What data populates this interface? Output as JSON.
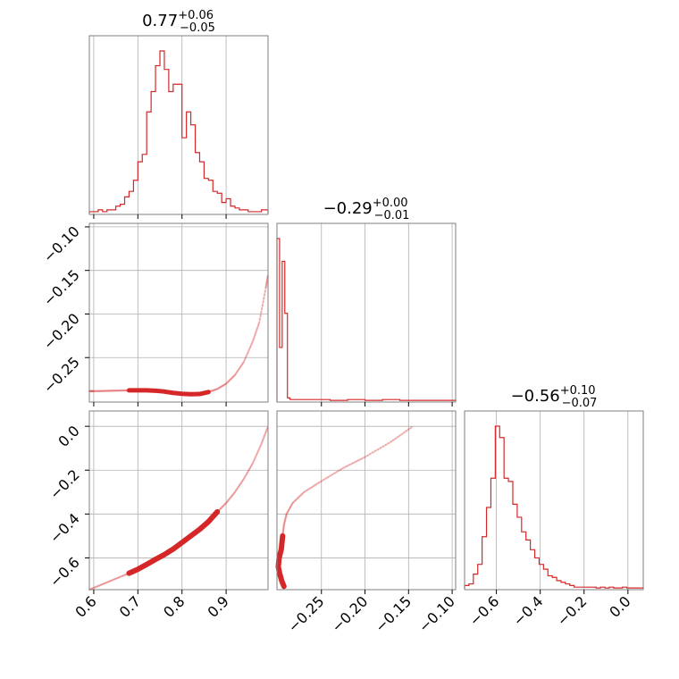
{
  "colors": {
    "accent": "#d62728",
    "grid": "#b0b0b0",
    "frame": "#7f7f7f"
  },
  "chart_data": {
    "type": "corner",
    "grid": true,
    "params": [
      {
        "title_main": "0.77",
        "title_plus": "+0.06",
        "title_minus": "−0.05",
        "range": [
          0.59,
          0.995
        ],
        "ticks": [
          0.6,
          0.7,
          0.8,
          0.9
        ],
        "tick_labels": [
          "0.6",
          "0.7",
          "0.8",
          "0.9"
        ]
      },
      {
        "title_main": "−0.29",
        "title_plus": "+0.00",
        "title_minus": "−0.01",
        "range": [
          -0.301,
          -0.096
        ],
        "ticks": [
          -0.25,
          -0.2,
          -0.15,
          -0.1
        ],
        "tick_labels": [
          "−0.25",
          "−0.20",
          "−0.15",
          "−0.10"
        ],
        "row_tick_labels": [
          "−0.10",
          "−0.15",
          "−0.20",
          "−0.25"
        ]
      },
      {
        "title_main": "−0.56",
        "title_plus": "+0.10",
        "title_minus": "−0.07",
        "range": [
          -0.745,
          0.07
        ],
        "ticks": [
          -0.6,
          -0.4,
          -0.2,
          0.0
        ],
        "tick_labels": [
          "−0.6",
          "−0.4",
          "−0.2",
          "0.0"
        ],
        "row_tick_labels": [
          "0.0",
          "−0.2",
          "−0.4",
          "−0.6"
        ]
      }
    ],
    "hist0": {
      "edges": [
        0.59,
        0.6,
        0.61,
        0.62,
        0.63,
        0.64,
        0.65,
        0.66,
        0.67,
        0.68,
        0.69,
        0.7,
        0.71,
        0.72,
        0.73,
        0.74,
        0.75,
        0.76,
        0.77,
        0.78,
        0.79,
        0.8,
        0.81,
        0.82,
        0.83,
        0.84,
        0.85,
        0.86,
        0.87,
        0.88,
        0.89,
        0.9,
        0.91,
        0.92,
        0.93,
        0.94,
        0.95,
        0.96,
        0.97,
        0.98,
        0.99,
        0.995
      ],
      "counts": [
        1,
        1,
        2,
        1,
        2,
        2,
        4,
        5,
        9,
        12,
        18,
        28,
        32,
        55,
        66,
        80,
        88,
        78,
        66,
        70,
        70,
        41,
        55,
        48,
        33,
        28,
        19,
        18,
        12,
        11,
        6,
        8,
        4,
        3,
        2,
        2,
        1,
        1,
        1,
        2,
        2
      ]
    },
    "hist1": {
      "edges": [
        -0.301,
        -0.298,
        -0.295,
        -0.292,
        -0.289,
        -0.286,
        -0.283,
        -0.28,
        -0.276,
        -0.27,
        -0.26,
        -0.24,
        -0.22,
        -0.2,
        -0.18,
        -0.16,
        -0.14,
        -0.12,
        -0.096
      ],
      "counts": [
        100,
        33,
        86,
        54,
        2,
        1,
        1,
        1,
        1,
        1,
        1,
        0.5,
        1,
        0.5,
        1,
        0.5,
        0.5,
        0.5
      ]
    },
    "hist2": {
      "edges": [
        -0.745,
        -0.725,
        -0.705,
        -0.685,
        -0.665,
        -0.645,
        -0.625,
        -0.605,
        -0.585,
        -0.565,
        -0.545,
        -0.525,
        -0.505,
        -0.485,
        -0.465,
        -0.445,
        -0.425,
        -0.405,
        -0.385,
        -0.365,
        -0.345,
        -0.325,
        -0.305,
        -0.285,
        -0.265,
        -0.245,
        -0.225,
        -0.205,
        -0.185,
        -0.165,
        -0.145,
        -0.125,
        -0.105,
        -0.085,
        -0.065,
        -0.045,
        -0.025,
        -0.005,
        0.015,
        0.035,
        0.055,
        0.07
      ],
      "counts": [
        2,
        3,
        9,
        15,
        32,
        50,
        68,
        100,
        93,
        68,
        66,
        52,
        44,
        35,
        30,
        24,
        19,
        15,
        12,
        8,
        7,
        5,
        4,
        3,
        2,
        1,
        1,
        1,
        1,
        1,
        0.5,
        1,
        0.5,
        1,
        0.5,
        0.5,
        1,
        0.5,
        0.5,
        0.5,
        0.5
      ]
    },
    "scatter10": [
      [
        0.59,
        -0.2885
      ],
      [
        0.6,
        -0.2885
      ],
      [
        0.62,
        -0.2883
      ],
      [
        0.64,
        -0.288
      ],
      [
        0.66,
        -0.2878
      ],
      [
        0.68,
        -0.2876
      ],
      [
        0.7,
        -0.2875
      ],
      [
        0.72,
        -0.2876
      ],
      [
        0.74,
        -0.288
      ],
      [
        0.76,
        -0.289
      ],
      [
        0.78,
        -0.2905
      ],
      [
        0.8,
        -0.2915
      ],
      [
        0.82,
        -0.292
      ],
      [
        0.84,
        -0.2918
      ],
      [
        0.86,
        -0.2895
      ],
      [
        0.88,
        -0.286
      ],
      [
        0.9,
        -0.28
      ],
      [
        0.92,
        -0.27
      ],
      [
        0.94,
        -0.255
      ],
      [
        0.96,
        -0.232
      ],
      [
        0.975,
        -0.21
      ],
      [
        0.99,
        -0.17
      ],
      [
        0.995,
        -0.155
      ]
    ],
    "scatter20": [
      [
        0.59,
        -0.745
      ],
      [
        0.62,
        -0.72
      ],
      [
        0.65,
        -0.695
      ],
      [
        0.68,
        -0.67
      ],
      [
        0.7,
        -0.652
      ],
      [
        0.72,
        -0.63
      ],
      [
        0.74,
        -0.607
      ],
      [
        0.76,
        -0.585
      ],
      [
        0.78,
        -0.56
      ],
      [
        0.8,
        -0.53
      ],
      [
        0.82,
        -0.5
      ],
      [
        0.84,
        -0.47
      ],
      [
        0.86,
        -0.435
      ],
      [
        0.88,
        -0.39
      ],
      [
        0.9,
        -0.35
      ],
      [
        0.92,
        -0.3
      ],
      [
        0.94,
        -0.24
      ],
      [
        0.96,
        -0.17
      ],
      [
        0.98,
        -0.08
      ],
      [
        0.995,
        0.0
      ]
    ],
    "scatter21": [
      [
        -0.293,
        -0.73
      ],
      [
        -0.2955,
        -0.705
      ],
      [
        -0.298,
        -0.67
      ],
      [
        -0.2995,
        -0.64
      ],
      [
        -0.2985,
        -0.6
      ],
      [
        -0.296,
        -0.56
      ],
      [
        -0.2945,
        -0.5
      ],
      [
        -0.293,
        -0.45
      ],
      [
        -0.29,
        -0.4
      ],
      [
        -0.283,
        -0.35
      ],
      [
        -0.27,
        -0.3
      ],
      [
        -0.25,
        -0.25
      ],
      [
        -0.225,
        -0.19
      ],
      [
        -0.2,
        -0.14
      ],
      [
        -0.17,
        -0.07
      ],
      [
        -0.145,
        0.0
      ]
    ]
  }
}
